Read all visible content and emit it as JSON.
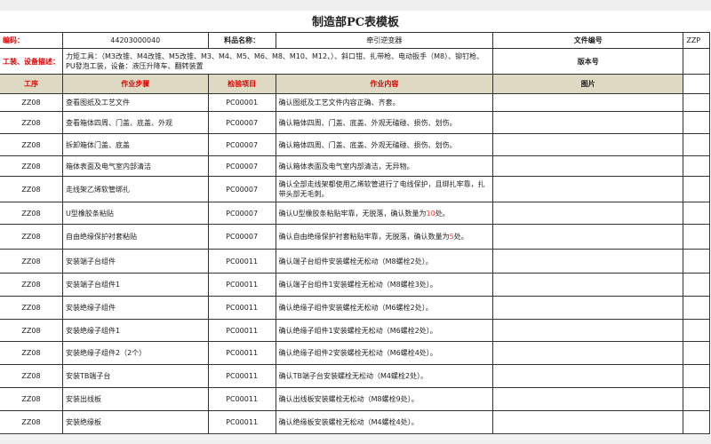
{
  "title": "制造部PC表模板",
  "info": {
    "code_label": "编码：",
    "code_value": "44203000040",
    "material_label": "料品名称：",
    "material_value": "牵引逆变器",
    "file_no_label": "文件编号",
    "file_no_value": "ZZP",
    "tools_label": "工装、设备描述：",
    "tools_value": "力矩工具：（M3改锥、M4改锥、M5改锥、M3、M4、M5、M6、M8、M10、M12、）、斜口钳、扎带枪、电动扳手（M8）、铆钉枪、PU發泡工装，设备：液压升降车、翻转装置",
    "version_label": "版本号"
  },
  "headers": [
    "工序",
    "作业步骤",
    "检验项目",
    "作业内容",
    "图片"
  ],
  "rows": [
    {
      "op": "ZZ08",
      "step": "查看图纸及工艺文件",
      "item": "PC00001",
      "content": "确认图纸及工艺文件内容正确、齐套。"
    },
    {
      "op": "ZZ08",
      "step": "查看箱体四周、门盖、底盖、外观",
      "item": "PC00007",
      "content": "确认箱体四周、门盖、底盖、外观无磕碰、损伤、划伤。"
    },
    {
      "op": "ZZ08",
      "step": "拆卸箱体门盖、底盖",
      "item": "PC00007",
      "content": "确认箱体四周、门盖、底盖、外观无磕碰、损伤、划伤。"
    },
    {
      "op": "ZZ08",
      "step": "箱体表面及电气室内部清洁",
      "item": "PC00007",
      "content": "确认箱体表面及电气室内部清洁，无异物。"
    },
    {
      "op": "ZZ08",
      "step": "走线架乙烯软管绑扎",
      "item": "PC00007",
      "content": "确认全部走线架都使用乙烯软管进行了电线保护，且绑扎牢靠，扎带头部无毛刺。"
    },
    {
      "op": "ZZ08",
      "step": "U型橡胶条粘贴",
      "item": "PC00007",
      "content": "确认U型橡胶条粘贴牢靠，无脱落，确认数量为",
      "num": "10",
      "suffix": "处。"
    },
    {
      "op": "ZZ08",
      "step": "自由绝缘保护衬套粘贴",
      "item": "PC00007",
      "content": "确认自由绝缘保护衬套粘贴牢靠，无脱落，确认数量为",
      "num": "5",
      "suffix": "处。"
    },
    {
      "op": "ZZ08",
      "step": "安装端子台组件",
      "item": "PC00011",
      "content": "确认端子台组件安装螺栓无松动（M8螺栓2处）。"
    },
    {
      "op": "ZZ08",
      "step": "安装端子台组件1",
      "item": "PC00011",
      "content": "确认端子台组件1安装螺栓无松动（M8螺栓3处）。"
    },
    {
      "op": "ZZ08",
      "step": "安装绝缘子组件",
      "item": "PC00011",
      "content": "确认绝缘子组件安装螺栓无松动（M6螺栓2处）。"
    },
    {
      "op": "ZZ08",
      "step": "安装绝缘子组件1",
      "item": "PC00011",
      "content": "确认绝缘子组件1安装螺栓无松动（M6螺栓2处）。"
    },
    {
      "op": "ZZ08",
      "step": "安装绝缘子组件2（2个）",
      "item": "PC00011",
      "content": "确认绝缘子组件2安装螺栓无松动（M6螺栓4处）。"
    },
    {
      "op": "ZZ08",
      "step": "安装TB端子台",
      "item": "PC00011",
      "content": "确认TB端子台安装螺栓无松动（M4螺栓2处）。"
    },
    {
      "op": "ZZ08",
      "step": "安装出线板",
      "item": "PC00011",
      "content": "确认出线板安装螺栓无松动（M8螺栓9处）。"
    },
    {
      "op": "ZZ08",
      "step": "安装绝缘板",
      "item": "PC00011",
      "content": "确认绝缘板安装螺栓无松动（M4螺栓4处）。"
    }
  ]
}
